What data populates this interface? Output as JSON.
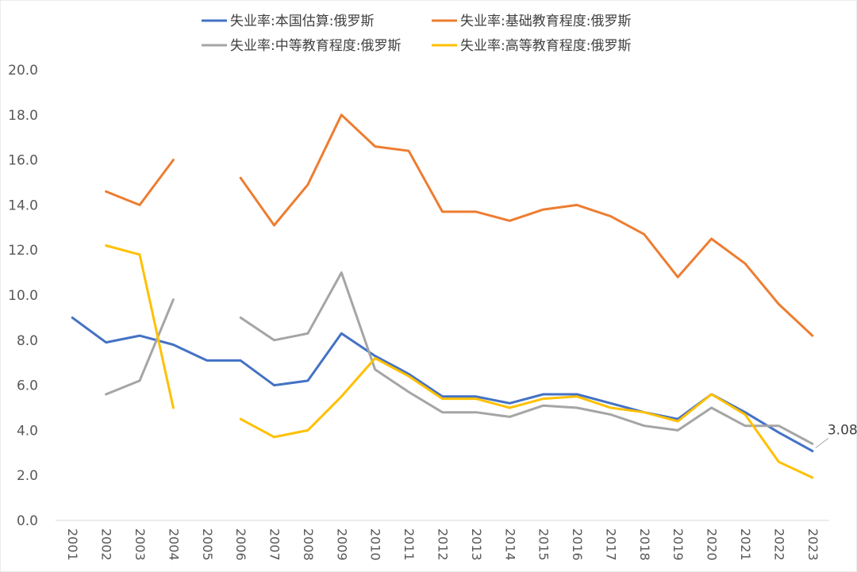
{
  "chart_data": {
    "type": "line",
    "title": "",
    "xlabel": "",
    "ylabel": "",
    "ylim": [
      0,
      20
    ],
    "ytick_step": 2,
    "ytick_labels": [
      "0.0",
      "2.0",
      "4.0",
      "6.0",
      "8.0",
      "10.0",
      "12.0",
      "14.0",
      "16.0",
      "18.0",
      "20.0"
    ],
    "grid": false,
    "legend_position": "top",
    "categories": [
      "2001",
      "2002",
      "2003",
      "2004",
      "2005",
      "2006",
      "2007",
      "2008",
      "2009",
      "2010",
      "2011",
      "2012",
      "2013",
      "2014",
      "2015",
      "2016",
      "2017",
      "2018",
      "2019",
      "2020",
      "2021",
      "2022",
      "2023"
    ],
    "series": [
      {
        "name": "失业率:本国估算:俄罗斯",
        "color": "#4472C4",
        "values": [
          9.0,
          7.9,
          8.2,
          7.8,
          7.1,
          7.1,
          6.0,
          6.2,
          8.3,
          7.3,
          6.5,
          5.5,
          5.5,
          5.2,
          5.6,
          5.6,
          5.2,
          4.8,
          4.5,
          5.6,
          4.8,
          3.9,
          3.08
        ]
      },
      {
        "name": "失业率:基础教育程度:俄罗斯",
        "color": "#ED7D31",
        "values": [
          null,
          14.6,
          14.0,
          16.0,
          null,
          15.2,
          13.1,
          14.9,
          18.0,
          16.6,
          16.4,
          13.7,
          13.7,
          13.3,
          13.8,
          14.0,
          13.5,
          12.7,
          10.8,
          12.5,
          11.4,
          9.6,
          8.2
        ]
      },
      {
        "name": "失业率:中等教育程度:俄罗斯",
        "color": "#A5A5A5",
        "values": [
          null,
          5.6,
          6.2,
          9.8,
          null,
          9.0,
          8.0,
          8.3,
          11.0,
          6.7,
          5.7,
          4.8,
          4.8,
          4.6,
          5.1,
          5.0,
          4.7,
          4.2,
          4.0,
          5.0,
          4.2,
          4.2,
          3.4
        ]
      },
      {
        "name": "失业率:高等教育程度:俄罗斯",
        "color": "#FFC000",
        "values": [
          null,
          12.2,
          11.8,
          5.0,
          null,
          4.5,
          3.7,
          4.0,
          5.5,
          7.2,
          6.4,
          5.4,
          5.4,
          5.0,
          5.4,
          5.5,
          5.0,
          4.8,
          4.4,
          5.6,
          4.7,
          2.6,
          1.9
        ]
      }
    ],
    "annotations": [
      {
        "series": 0,
        "category": "2023",
        "text": "3.08"
      }
    ]
  }
}
